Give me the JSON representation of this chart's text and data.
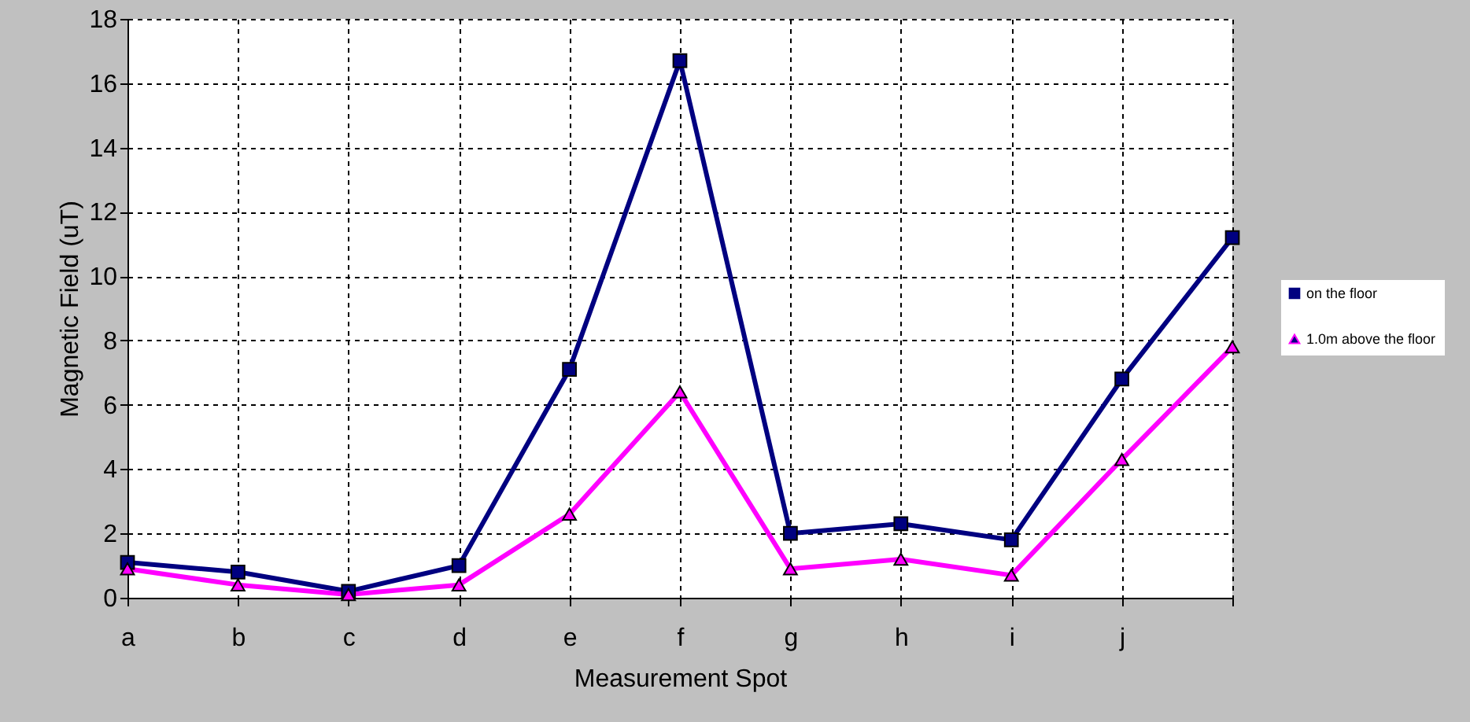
{
  "chart_data": {
    "type": "line",
    "xlabel": "Measurement Spot",
    "ylabel": "Magnetic Field (uT)",
    "categories": [
      "a",
      "b",
      "c",
      "d",
      "e",
      "f",
      "g",
      "h",
      "i",
      "j",
      null
    ],
    "ylim": [
      0,
      18
    ],
    "yticks": [
      0,
      2,
      4,
      6,
      8,
      10,
      12,
      14,
      16,
      18
    ],
    "grid": true,
    "legend": "right",
    "series": [
      {
        "name": "on the floor",
        "color": "#000080",
        "marker": "square",
        "values": [
          1.1,
          0.8,
          0.2,
          1.0,
          7.1,
          16.7,
          2.0,
          2.3,
          1.8,
          6.8,
          11.2
        ]
      },
      {
        "name": "1.0m above the floor",
        "color": "#ff00ff",
        "marker": "triangle",
        "values": [
          0.9,
          0.4,
          0.1,
          0.4,
          2.6,
          6.4,
          0.9,
          1.2,
          0.7,
          4.3,
          7.8
        ]
      }
    ]
  }
}
